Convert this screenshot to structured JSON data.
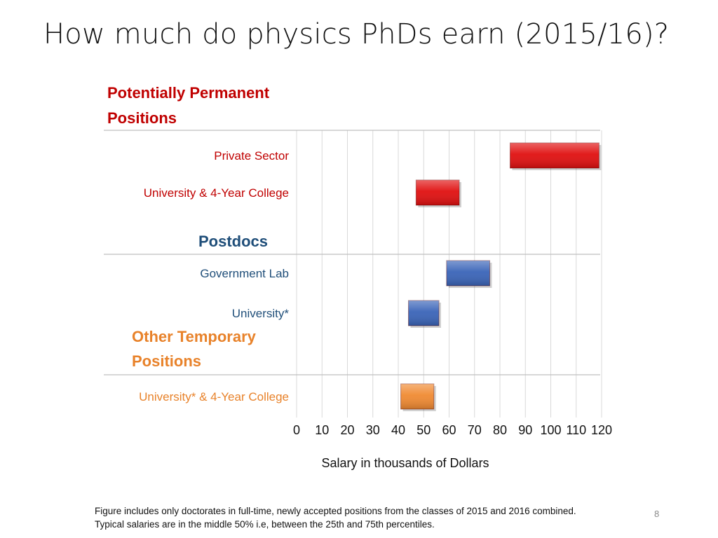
{
  "slide": {
    "title": "How much do physics PhDs earn (2015/16)?",
    "page_number": "8",
    "footnote_line1": "Figure includes only doctorates in full-time, newly accepted positions from the classes of 2015 and 2016 combined.",
    "footnote_line2": "Typical salaries are in the middle 50% i.e, between the 25th and 75th percentiles."
  },
  "chart_data": {
    "type": "bar",
    "orientation": "horizontal-range",
    "xlabel": "Salary in thousands of Dollars",
    "xlim": [
      0,
      120
    ],
    "xticks": [
      "0",
      "10",
      "20",
      "30",
      "40",
      "50",
      "60",
      "70",
      "80",
      "90",
      "100",
      "110",
      "120"
    ],
    "grid": "vertical",
    "groups": [
      {
        "name": "Potentially Permanent Positions",
        "name_lines": [
          "Potentially Permanent",
          "Positions"
        ],
        "color": "#c00000",
        "bars": [
          {
            "label": "Private Sector",
            "low": 84,
            "high": 119,
            "color": "#e01010"
          },
          {
            "label": "University & 4-Year College",
            "low": 47,
            "high": 64,
            "color": "#e01010"
          }
        ]
      },
      {
        "name": "Postdocs",
        "name_lines": [
          "Postdocs"
        ],
        "color": "#1f4e79",
        "bars": [
          {
            "label": "Government Lab",
            "low": 59,
            "high": 76,
            "color": "#3a64b8"
          },
          {
            "label": "University*",
            "low": 44,
            "high": 56,
            "color": "#3a64b8"
          }
        ]
      },
      {
        "name": "Other Temporary Positions",
        "name_lines": [
          "Other Temporary",
          "Positions"
        ],
        "color": "#e8822a",
        "bars": [
          {
            "label": "University* & 4-Year College",
            "low": 41,
            "high": 54,
            "color": "#f08a32"
          }
        ]
      }
    ]
  }
}
